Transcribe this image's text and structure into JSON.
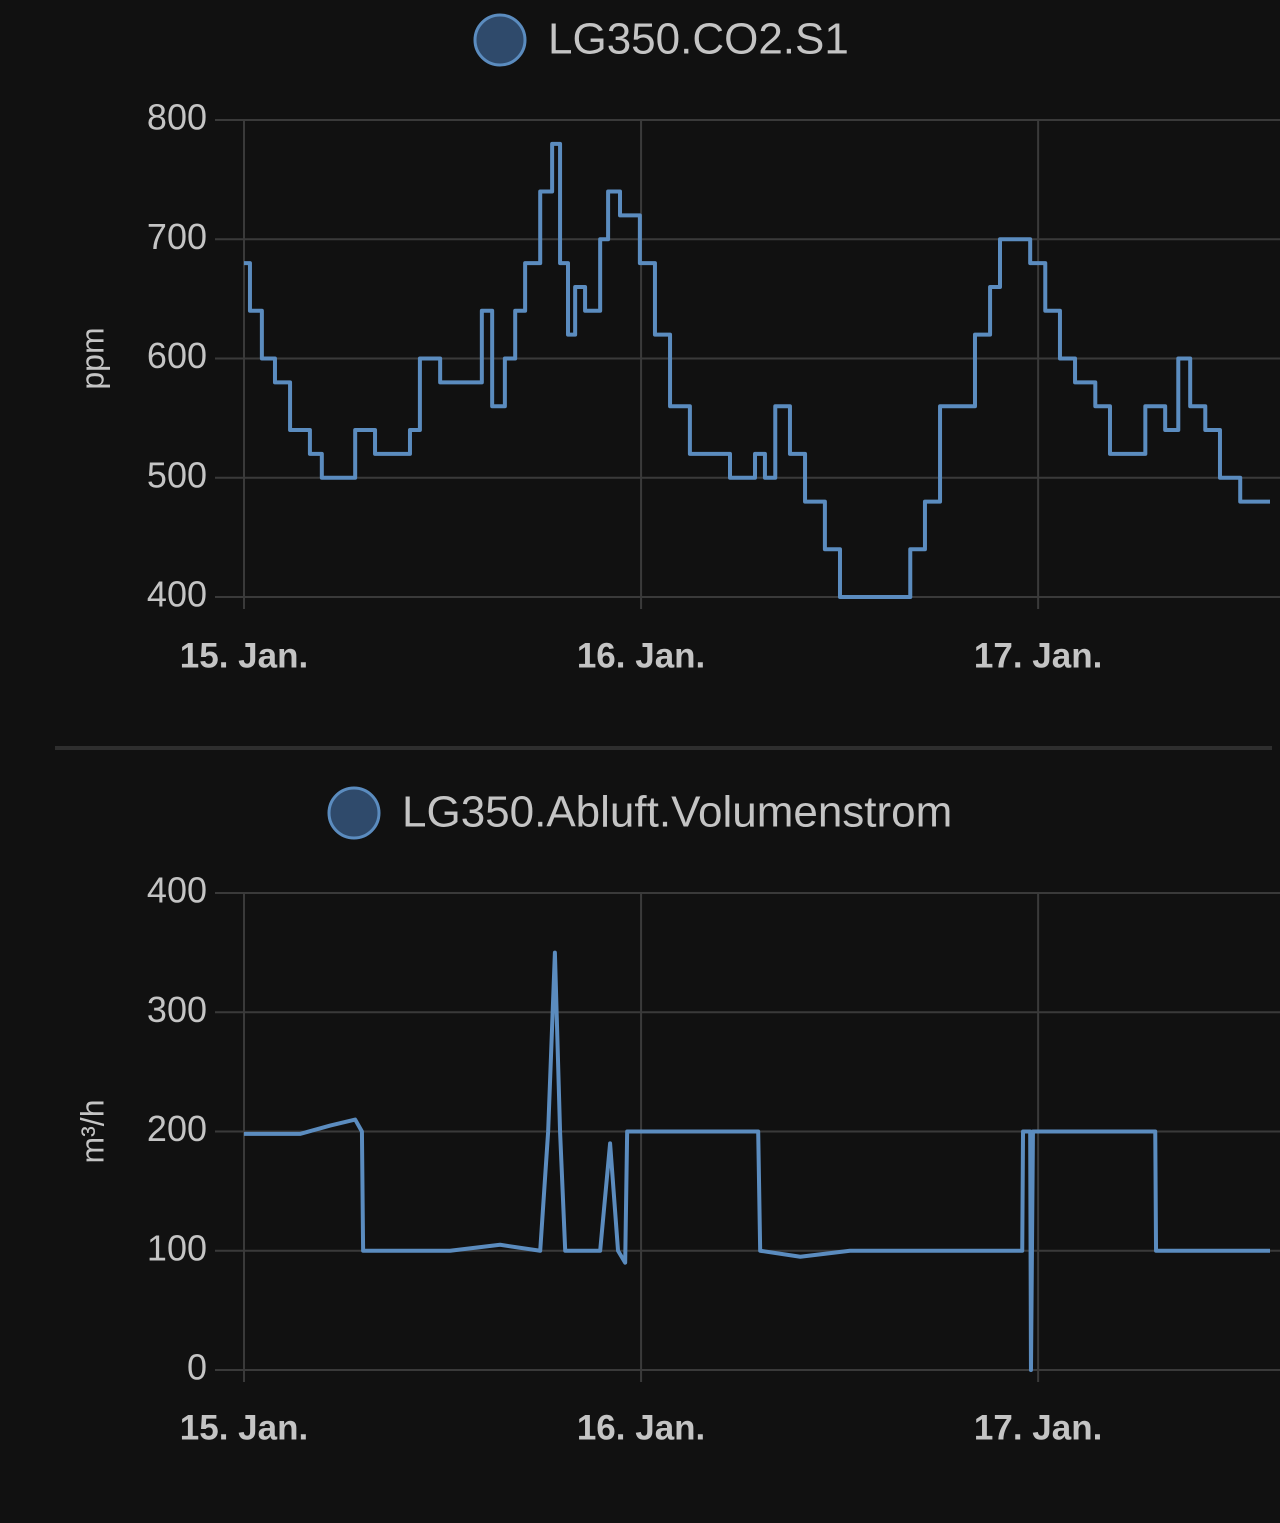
{
  "chart_data": [
    {
      "type": "line",
      "step": true,
      "series": [
        {
          "name": "LG350.CO2.S1",
          "color": "#5b8cbf",
          "values": [
            680,
            640,
            600,
            580,
            540,
            520,
            500,
            500,
            540,
            520,
            520,
            540,
            600,
            580,
            580,
            640,
            560,
            600,
            640,
            680,
            740,
            780,
            680,
            620,
            660,
            640,
            700,
            740,
            720,
            680,
            620,
            560,
            520,
            520,
            500,
            520,
            500,
            560,
            520,
            480,
            440,
            400,
            400,
            400,
            440,
            480,
            560,
            560,
            620,
            660,
            700,
            700,
            680,
            640,
            600,
            580,
            560,
            520,
            520,
            560,
            540,
            600,
            560,
            540,
            500,
            480,
            480
          ]
        }
      ],
      "x": [
        0,
        0.015,
        0.045,
        0.078,
        0.116,
        0.166,
        0.196,
        0.254,
        0.28,
        0.33,
        0.393,
        0.418,
        0.443,
        0.494,
        0.569,
        0.599,
        0.625,
        0.657,
        0.683,
        0.708,
        0.746,
        0.776,
        0.796,
        0.816,
        0.834,
        0.859,
        0.897,
        0.917,
        0.947,
        0.997,
        1.035,
        1.073,
        1.123,
        1.174,
        1.224,
        1.287,
        1.312,
        1.338,
        1.375,
        1.413,
        1.463,
        1.501,
        1.577,
        1.647,
        1.678,
        1.715,
        1.753,
        1.804,
        1.841,
        1.879,
        1.904,
        1.942,
        1.98,
        2.018,
        2.055,
        2.093,
        2.144,
        2.181,
        2.232,
        2.27,
        2.32,
        2.353,
        2.383,
        2.421,
        2.458,
        2.509,
        2.584
      ],
      "xlim": [
        0,
        2.584
      ],
      "xticks": [
        {
          "value": 0,
          "label": "15. Jan."
        },
        {
          "value": 1,
          "label": "16. Jan."
        },
        {
          "value": 2,
          "label": "17. Jan."
        }
      ],
      "ylim": [
        400,
        800
      ],
      "yticks": [
        400,
        500,
        600,
        700,
        800
      ],
      "y_label": "ppm",
      "grid": true
    },
    {
      "type": "line",
      "step": false,
      "series": [
        {
          "name": "LG350.Abluft.Volumenstrom",
          "color": "#5b8cbf",
          "values": [
            198,
            198,
            205,
            210,
            200,
            100,
            100,
            100,
            105,
            100,
            200,
            350,
            200,
            100,
            100,
            190,
            100,
            90,
            200,
            200,
            200,
            200,
            100,
            95,
            100,
            100,
            100,
            100,
            200,
            200,
            0,
            200,
            200,
            200,
            100,
            100
          ]
        }
      ],
      "x": [
        0,
        0.141,
        0.217,
        0.28,
        0.297,
        0.3,
        0.393,
        0.519,
        0.645,
        0.746,
        0.766,
        0.783,
        0.796,
        0.809,
        0.897,
        0.922,
        0.942,
        0.96,
        0.965,
        1.098,
        1.249,
        1.295,
        1.3,
        1.401,
        1.526,
        1.652,
        1.904,
        1.96,
        1.962,
        1.98,
        1.982,
        1.987,
        2.156,
        2.295,
        2.297,
        2.584
      ],
      "xlim": [
        0,
        2.584
      ],
      "xticks": [
        {
          "value": 0,
          "label": "15. Jan."
        },
        {
          "value": 1,
          "label": "16. Jan."
        },
        {
          "value": 2,
          "label": "17. Jan."
        }
      ],
      "ylim": [
        0,
        400
      ],
      "yticks": [
        0,
        100,
        200,
        300,
        400
      ],
      "y_label": "m³/h",
      "grid": true
    }
  ]
}
